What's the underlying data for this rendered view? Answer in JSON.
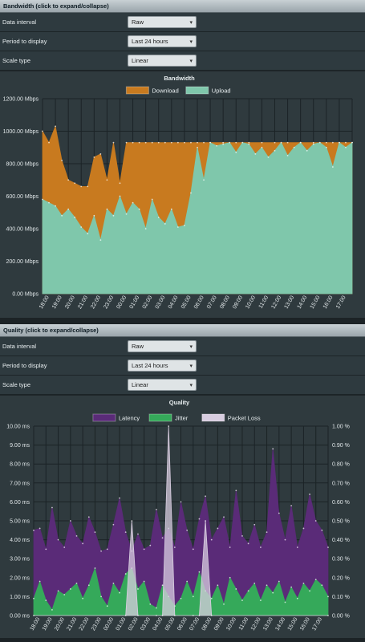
{
  "bandwidth": {
    "header": "Bandwidth (click to expand/collapse)",
    "options": [
      {
        "label": "Data interval",
        "value": "Raw"
      },
      {
        "label": "Period to display",
        "value": "Last 24 hours"
      },
      {
        "label": "Scale type",
        "value": "Linear"
      }
    ]
  },
  "quality": {
    "header": "Quality (click to expand/collapse)",
    "options": [
      {
        "label": "Data interval",
        "value": "Raw"
      },
      {
        "label": "Period to display",
        "value": "Last 24 hours"
      },
      {
        "label": "Scale type",
        "value": "Linear"
      }
    ]
  },
  "colors": {
    "download": "#c87a1f",
    "upload": "#7fc7ab",
    "latency": "#5a2b78",
    "jitter": "#35a95a",
    "packet_loss": "#d8cde0"
  },
  "chart_data": [
    {
      "type": "area",
      "title": "Bandwidth",
      "legend": [
        "Download",
        "Upload"
      ],
      "legend_position": "top",
      "y_ticks": [
        "0.00 Mbps",
        "200.00 Mbps",
        "400.00 Mbps",
        "600.00 Mbps",
        "800.00 Mbps",
        "1000.00 Mbps",
        "1200.00 Mbps"
      ],
      "ylim": [
        0,
        1200
      ],
      "x_ticks": [
        "18:00",
        "19:00",
        "20:00",
        "21:00",
        "22:00",
        "23:00",
        "00:00",
        "01:00",
        "02:00",
        "03:00",
        "04:00",
        "05:00",
        "06:00",
        "07:00",
        "08:00",
        "09:00",
        "10:00",
        "11:00",
        "12:00",
        "13:00",
        "14:00",
        "15:00",
        "16:00",
        "17:00"
      ],
      "series": [
        {
          "name": "Download",
          "x": [
            0,
            0.5,
            1,
            1.5,
            2,
            2.5,
            3,
            3.5,
            4,
            4.5,
            5,
            5.5,
            6,
            6.5,
            7,
            7.5,
            8,
            8.5,
            9,
            9.5,
            10,
            10.5,
            11,
            11.5,
            12,
            12.5,
            13,
            14,
            15,
            16,
            17,
            18,
            19,
            20,
            21,
            22,
            22.5,
            23,
            23.5,
            24
          ],
          "values": [
            1000,
            930,
            1030,
            820,
            700,
            680,
            660,
            660,
            840,
            860,
            700,
            930,
            680,
            930,
            930,
            930,
            930,
            930,
            930,
            930,
            930,
            930,
            930,
            930,
            930,
            930,
            930,
            930,
            930,
            930,
            930,
            930,
            930,
            930,
            930,
            930,
            930,
            930,
            930,
            930
          ]
        },
        {
          "name": "Upload",
          "x": [
            0,
            0.5,
            1,
            1.5,
            2,
            2.5,
            3,
            3.5,
            4,
            4.5,
            5,
            5.5,
            6,
            6.5,
            7,
            7.5,
            8,
            8.5,
            9,
            9.5,
            10,
            10.5,
            11,
            11.5,
            12,
            12.5,
            13,
            13.5,
            14,
            14.5,
            15,
            15.5,
            16,
            16.5,
            17,
            17.5,
            18,
            18.5,
            19,
            19.5,
            20,
            20.5,
            21,
            21.5,
            22,
            22.5,
            23,
            23.5,
            24
          ],
          "values": [
            580,
            560,
            540,
            480,
            520,
            470,
            410,
            370,
            480,
            330,
            520,
            480,
            600,
            490,
            560,
            520,
            400,
            580,
            470,
            430,
            520,
            410,
            420,
            620,
            900,
            700,
            930,
            910,
            920,
            930,
            870,
            930,
            920,
            860,
            900,
            840,
            880,
            930,
            850,
            900,
            930,
            880,
            920,
            930,
            900,
            780,
            930,
            900,
            930
          ]
        }
      ]
    },
    {
      "type": "area",
      "title": "Quality",
      "legend": [
        "Latency",
        "Jitter",
        "Packet Loss"
      ],
      "legend_position": "top",
      "y_ticks_left": [
        "0.00 ms",
        "1.00 ms",
        "2.00 ms",
        "3.00 ms",
        "4.00 ms",
        "5.00 ms",
        "6.00 ms",
        "7.00 ms",
        "8.00 ms",
        "9.00 ms",
        "10.00 ms"
      ],
      "y_ticks_right": [
        "0.00 %",
        "0.10 %",
        "0.20 %",
        "0.30 %",
        "0.40 %",
        "0.50 %",
        "0.60 %",
        "0.70 %",
        "0.80 %",
        "0.90 %",
        "1.00 %"
      ],
      "ylim": [
        0,
        10
      ],
      "ylim_right": [
        0,
        1
      ],
      "x_ticks": [
        "18:00",
        "19:00",
        "20:00",
        "21:00",
        "22:00",
        "23:00",
        "00:00",
        "01:00",
        "02:00",
        "03:00",
        "04:00",
        "05:00",
        "06:00",
        "07:00",
        "08:00",
        "09:00",
        "10:00",
        "11:00",
        "12:00",
        "13:00",
        "14:00",
        "15:00",
        "16:00",
        "17:00"
      ],
      "series": [
        {
          "name": "Latency",
          "x": [
            0,
            0.5,
            1,
            1.5,
            2,
            2.5,
            3,
            3.5,
            4,
            4.5,
            5,
            5.5,
            6,
            6.5,
            7,
            7.5,
            8,
            8.5,
            9,
            9.5,
            10,
            10.5,
            11,
            11.5,
            12,
            12.5,
            13,
            13.5,
            14,
            14.5,
            15,
            15.5,
            16,
            16.5,
            17,
            17.5,
            18,
            18.5,
            19,
            19.5,
            20,
            20.5,
            21,
            21.5,
            22,
            22.5,
            23,
            23.5,
            24
          ],
          "values": [
            4.5,
            4.6,
            3.5,
            5.7,
            4.0,
            3.6,
            5.0,
            4.2,
            3.8,
            5.2,
            4.4,
            3.4,
            3.5,
            4.8,
            6.2,
            4.4,
            3.4,
            4.3,
            3.5,
            3.7,
            5.6,
            4.1,
            4.6,
            3.6,
            6.0,
            4.5,
            3.5,
            5.1,
            6.3,
            4.0,
            4.6,
            5.2,
            3.6,
            6.6,
            4.2,
            3.8,
            4.8,
            3.6,
            4.4,
            8.8,
            5.4,
            4.0,
            5.8,
            3.6,
            4.6,
            6.4,
            5.0,
            4.5,
            3.6
          ]
        },
        {
          "name": "Jitter",
          "x": [
            0,
            0.5,
            1,
            1.5,
            2,
            2.5,
            3,
            3.5,
            4,
            4.5,
            5,
            5.5,
            6,
            6.5,
            7,
            7.5,
            8,
            8.5,
            9,
            9.5,
            10,
            10.5,
            11,
            11.5,
            12,
            12.5,
            13,
            13.5,
            14,
            14.5,
            15,
            15.5,
            16,
            16.5,
            17,
            17.5,
            18,
            18.5,
            19,
            19.5,
            20,
            20.5,
            21,
            21.5,
            22,
            22.5,
            23,
            23.5,
            24
          ],
          "values": [
            0.9,
            1.8,
            0.8,
            0.3,
            1.3,
            1.1,
            1.4,
            1.7,
            0.9,
            1.6,
            2.5,
            1.0,
            0.5,
            1.7,
            1.2,
            2.2,
            2.5,
            1.4,
            1.8,
            0.6,
            0.4,
            1.6,
            1.0,
            0.5,
            0.9,
            1.8,
            1.0,
            2.3,
            1.3,
            0.9,
            1.6,
            0.6,
            2.0,
            1.4,
            0.8,
            1.3,
            1.7,
            0.8,
            1.6,
            1.2,
            1.8,
            0.7,
            1.5,
            0.9,
            1.7,
            1.3,
            1.9,
            1.6,
            1.0
          ]
        },
        {
          "name": "Packet Loss",
          "x": [
            0,
            7.5,
            8,
            8.5,
            10,
            10.5,
            11,
            11.5,
            13,
            13.5,
            14,
            14.5,
            24
          ],
          "values": [
            0,
            0,
            0.5,
            0,
            0,
            0,
            1.0,
            0,
            0,
            0,
            0.5,
            0,
            0
          ]
        }
      ]
    }
  ]
}
